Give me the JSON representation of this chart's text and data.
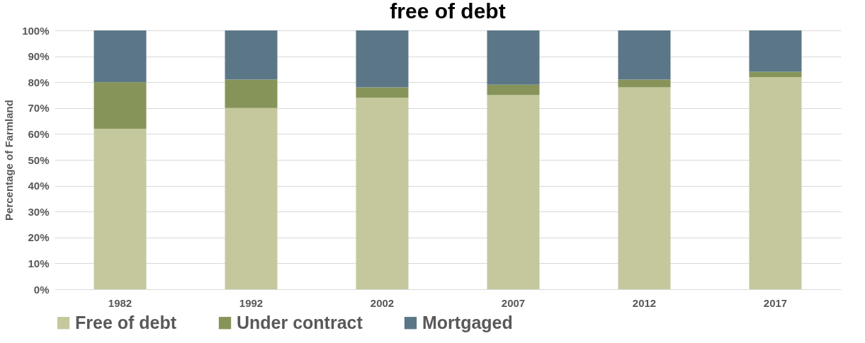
{
  "chart_data": {
    "type": "bar",
    "title": "free of debt",
    "ylabel": "Percentage of Farmland",
    "categories": [
      "1982",
      "1992",
      "2002",
      "2007",
      "2012",
      "2017"
    ],
    "stacked": true,
    "series": [
      {
        "name": "Free of debt",
        "color": "#c5c89d",
        "values": [
          62,
          70,
          74,
          75,
          78,
          82
        ]
      },
      {
        "name": "Under contract",
        "color": "#879459",
        "values": [
          18,
          11,
          4,
          4,
          3,
          2
        ]
      },
      {
        "name": "Mortgaged",
        "color": "#5b7787",
        "values": [
          20,
          19,
          22,
          21,
          19,
          16
        ]
      }
    ],
    "ylim": [
      0,
      100
    ],
    "yticks": [
      {
        "value": 0,
        "label": "0%"
      },
      {
        "value": 10,
        "label": "10%"
      },
      {
        "value": 20,
        "label": "20%"
      },
      {
        "value": 30,
        "label": "30%"
      },
      {
        "value": 40,
        "label": "40%"
      },
      {
        "value": 50,
        "label": "50%"
      },
      {
        "value": 60,
        "label": "60%"
      },
      {
        "value": 70,
        "label": "70%"
      },
      {
        "value": 80,
        "label": "80%"
      },
      {
        "value": 90,
        "label": "90%"
      },
      {
        "value": 100,
        "label": "100%"
      }
    ],
    "grid": "y",
    "legend": "bottom"
  }
}
